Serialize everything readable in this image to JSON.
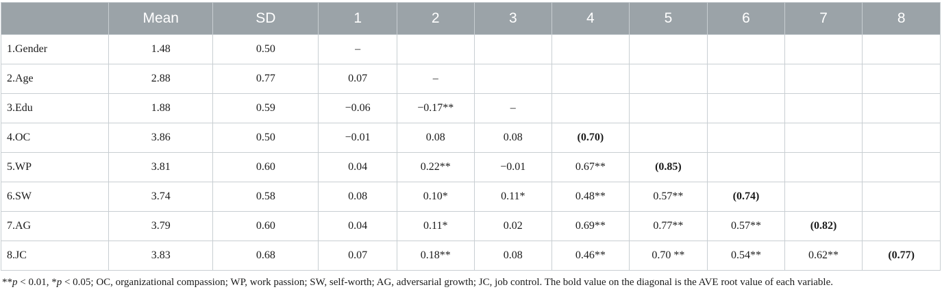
{
  "table": {
    "headers": [
      "",
      "Mean",
      "SD",
      "1",
      "2",
      "3",
      "4",
      "5",
      "6",
      "7",
      "8"
    ],
    "rows": [
      {
        "label": "1.Gender",
        "cells": [
          "1.48",
          "0.50",
          "–",
          "",
          "",
          "",
          "",
          "",
          "",
          ""
        ]
      },
      {
        "label": "2.Age",
        "cells": [
          "2.88",
          "0.77",
          "0.07",
          "–",
          "",
          "",
          "",
          "",
          "",
          ""
        ]
      },
      {
        "label": "3.Edu",
        "cells": [
          "1.88",
          "0.59",
          "−0.06",
          "−0.17**",
          "–",
          "",
          "",
          "",
          "",
          ""
        ]
      },
      {
        "label": "4.OC",
        "cells": [
          "3.86",
          "0.50",
          "−0.01",
          "0.08",
          "0.08",
          "(0.70)",
          "",
          "",
          "",
          ""
        ]
      },
      {
        "label": "5.WP",
        "cells": [
          "3.81",
          "0.60",
          "0.04",
          "0.22**",
          "−0.01",
          "0.67**",
          "(0.85)",
          "",
          "",
          ""
        ]
      },
      {
        "label": "6.SW",
        "cells": [
          "3.74",
          "0.58",
          "0.08",
          "0.10*",
          "0.11*",
          "0.48**",
          "0.57**",
          "(0.74)",
          "",
          ""
        ]
      },
      {
        "label": "7.AG",
        "cells": [
          "3.79",
          "0.60",
          "0.04",
          "0.11*",
          "0.02",
          "0.69**",
          "0.77**",
          "0.57**",
          "(0.82)",
          ""
        ]
      },
      {
        "label": "8.JC",
        "cells": [
          "3.83",
          "0.68",
          "0.07",
          "0.18**",
          "0.08",
          "0.46**",
          "0.70 **",
          "0.54**",
          "0.62**",
          "(0.77)"
        ]
      }
    ]
  },
  "footnote": {
    "p1": "p",
    "t1": " < 0.01, *",
    "p2": "p",
    "t2": " < 0.05; OC, organizational compassion; WP, work passion; SW, self-worth; AG, adversarial growth; JC, job control. The bold value on the diagonal is the AVE root value of each variable.",
    "prefix": "**"
  }
}
